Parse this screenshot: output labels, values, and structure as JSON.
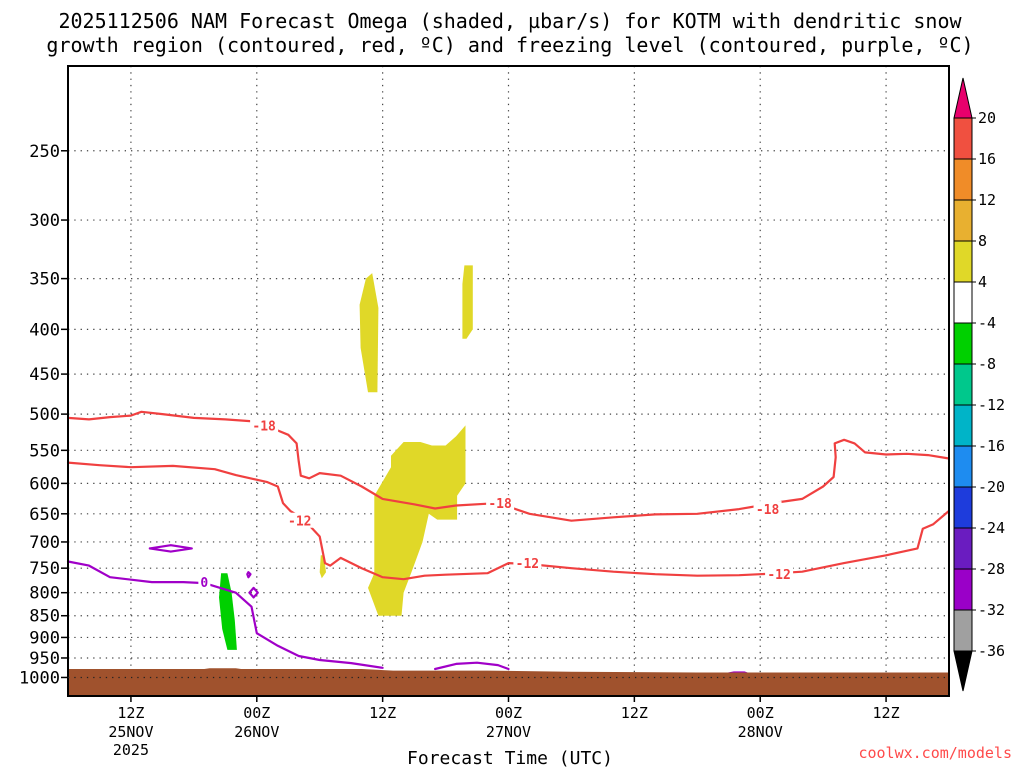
{
  "chart_data": {
    "type": "heatmap",
    "title_line1": "2025112506 NAM Forecast Omega (shaded, µbar/s) for KOTM with dendritic snow",
    "title_line2": "growth region (contoured, red, ºC) and freezing level (contoured, purple, ºC)",
    "xlabel": "Forecast Time (UTC)",
    "ylabel": "",
    "credit": "coolwx.com/models",
    "x_axis": {
      "unit": "hours since 2025-11-25 06Z",
      "range": [
        0,
        84
      ],
      "ticks": [
        {
          "h": 6,
          "label": "12Z",
          "sub1": "25NOV",
          "sub2": "2025"
        },
        {
          "h": 18,
          "label": "00Z",
          "sub1": "26NOV",
          "sub2": ""
        },
        {
          "h": 30,
          "label": "12Z",
          "sub1": "",
          "sub2": ""
        },
        {
          "h": 42,
          "label": "00Z",
          "sub1": "27NOV",
          "sub2": ""
        },
        {
          "h": 54,
          "label": "12Z",
          "sub1": "",
          "sub2": ""
        },
        {
          "h": 66,
          "label": "00Z",
          "sub1": "28NOV",
          "sub2": ""
        },
        {
          "h": 78,
          "label": "12Z",
          "sub1": "",
          "sub2": ""
        }
      ]
    },
    "y_axis": {
      "unit": "hPa",
      "scale": "log",
      "range": [
        1050,
        200
      ],
      "ticks": [
        250,
        300,
        350,
        400,
        450,
        500,
        550,
        600,
        650,
        700,
        750,
        800,
        850,
        900,
        950,
        1000
      ]
    },
    "grid": true,
    "colorbar": {
      "position": "right",
      "colors": [
        "#000000",
        "#a0a0a0",
        "#9a00c8",
        "#6a1cc0",
        "#1e3cdc",
        "#1e8cf0",
        "#00b4c8",
        "#00c88c",
        "#00d000",
        "#ffffff",
        "#e0d828",
        "#e8b030",
        "#f08c28",
        "#f05040",
        "#e8006c"
      ],
      "labels": [
        "-36",
        "-32",
        "-28",
        "-24",
        "-20",
        "-16",
        "-12",
        "-8",
        "-4",
        "4",
        "8",
        "12",
        "16",
        "20"
      ]
    },
    "ground_color": "#a0522d",
    "ground_top_hpa": [
      [
        0,
        978
      ],
      [
        13,
        978
      ],
      [
        13.5,
        976
      ],
      [
        16,
        976
      ],
      [
        16.5,
        978
      ],
      [
        28,
        978
      ],
      [
        31,
        982
      ],
      [
        40,
        982
      ],
      [
        48,
        985
      ],
      [
        60,
        987
      ],
      [
        84,
        987
      ]
    ],
    "omega_regions": [
      {
        "category": "-8 to -4",
        "color": "#00d000",
        "points": [
          [
            14.6,
            760
          ],
          [
            15.2,
            760
          ],
          [
            15.6,
            800
          ],
          [
            15.9,
            860
          ],
          [
            16.1,
            930
          ],
          [
            15.2,
            930
          ],
          [
            14.7,
            880
          ],
          [
            14.4,
            810
          ]
        ]
      },
      {
        "category": "4 to 8",
        "color": "#e0d828",
        "points": [
          [
            28.4,
            350
          ],
          [
            29.0,
            345
          ],
          [
            29.6,
            378
          ],
          [
            29.5,
            472
          ],
          [
            28.6,
            472
          ],
          [
            27.9,
            420
          ],
          [
            27.8,
            375
          ]
        ]
      },
      {
        "category": "4 to 8",
        "color": "#e0d828",
        "points": [
          [
            37.8,
            338
          ],
          [
            38.6,
            338
          ],
          [
            38.6,
            400
          ],
          [
            38.0,
            410
          ],
          [
            37.6,
            410
          ],
          [
            37.6,
            355
          ]
        ]
      },
      {
        "category": "4 to 8",
        "color": "#e0d828",
        "points": [
          [
            32.0,
            538
          ],
          [
            33.6,
            538
          ],
          [
            34.7,
            543
          ],
          [
            36.0,
            543
          ],
          [
            37.0,
            530
          ],
          [
            37.9,
            515
          ],
          [
            37.9,
            600
          ],
          [
            37.1,
            620
          ],
          [
            37.1,
            660
          ],
          [
            35.2,
            660
          ],
          [
            34.4,
            650
          ],
          [
            33.8,
            700
          ],
          [
            32.8,
            755
          ],
          [
            32.0,
            800
          ],
          [
            31.8,
            850
          ],
          [
            29.6,
            850
          ],
          [
            28.6,
            790
          ],
          [
            29.2,
            760
          ],
          [
            29.2,
            620
          ],
          [
            30.8,
            575
          ],
          [
            30.8,
            558
          ]
        ]
      },
      {
        "category": "4 to 8",
        "color": "#e0d828",
        "points": [
          [
            24.1,
            725
          ],
          [
            24.4,
            725
          ],
          [
            24.6,
            758
          ],
          [
            24.2,
            770
          ],
          [
            24.0,
            758
          ]
        ]
      }
    ],
    "contours": [
      {
        "series": "dendritic snow growth region (ºC)",
        "color": "#f04040",
        "level": -18,
        "label": "-18",
        "points": [
          [
            0,
            505
          ],
          [
            2,
            507
          ],
          [
            4,
            504
          ],
          [
            6,
            502
          ],
          [
            7,
            497
          ],
          [
            9,
            500
          ],
          [
            12,
            505
          ],
          [
            15,
            507
          ],
          [
            18,
            510
          ],
          [
            20,
            522
          ],
          [
            21,
            528
          ],
          [
            21.8,
            540
          ],
          [
            22,
            566
          ],
          [
            22.2,
            588
          ],
          [
            23,
            592
          ],
          [
            24,
            584
          ],
          [
            26,
            588
          ],
          [
            28,
            605
          ],
          [
            30,
            625
          ],
          [
            33,
            634
          ],
          [
            35,
            641
          ],
          [
            37,
            636
          ],
          [
            40,
            633
          ],
          [
            42,
            638
          ],
          [
            44,
            650
          ],
          [
            48,
            662
          ],
          [
            52,
            656
          ],
          [
            56,
            651
          ],
          [
            60,
            650
          ],
          [
            64,
            642
          ],
          [
            68,
            630
          ],
          [
            70,
            625
          ],
          [
            72,
            605
          ],
          [
            73,
            590
          ],
          [
            73.2,
            560
          ],
          [
            73.1,
            540
          ],
          [
            74,
            535
          ],
          [
            75,
            540
          ],
          [
            76,
            553
          ],
          [
            78,
            556
          ],
          [
            80,
            555
          ],
          [
            82,
            557
          ],
          [
            84,
            562
          ]
        ]
      },
      {
        "series": "dendritic snow growth region (ºC)",
        "color": "#f04040",
        "level": -12,
        "label": "-12",
        "points": [
          [
            0,
            568
          ],
          [
            3,
            572
          ],
          [
            6,
            575
          ],
          [
            10,
            573
          ],
          [
            14,
            578
          ],
          [
            16,
            587
          ],
          [
            19,
            598
          ],
          [
            20,
            605
          ],
          [
            20.5,
            632
          ],
          [
            21.2,
            645
          ],
          [
            22.5,
            660
          ],
          [
            24,
            690
          ],
          [
            24.5,
            740
          ],
          [
            25,
            745
          ],
          [
            26,
            730
          ],
          [
            28,
            750
          ],
          [
            30,
            768
          ],
          [
            32,
            772
          ],
          [
            34,
            765
          ],
          [
            36,
            763
          ],
          [
            40,
            760
          ],
          [
            42,
            740
          ],
          [
            44,
            742
          ],
          [
            48,
            750
          ],
          [
            52,
            757
          ],
          [
            56,
            762
          ],
          [
            60,
            765
          ],
          [
            64,
            764
          ],
          [
            66,
            762
          ],
          [
            70,
            757
          ],
          [
            74,
            740
          ],
          [
            78,
            725
          ],
          [
            81,
            712
          ],
          [
            81.5,
            676
          ],
          [
            82.5,
            668
          ],
          [
            84,
            645
          ]
        ]
      },
      {
        "series": "freezing level (ºC)",
        "color": "#a000c8",
        "level": 0,
        "label": "0",
        "points": [
          [
            0,
            737
          ],
          [
            2,
            745
          ],
          [
            4,
            768
          ],
          [
            8,
            778
          ],
          [
            11,
            778
          ],
          [
            13,
            780
          ],
          [
            16,
            800
          ],
          [
            17.5,
            830
          ],
          [
            18,
            890
          ],
          [
            20,
            920
          ],
          [
            22,
            945
          ],
          [
            24,
            955
          ],
          [
            27,
            963
          ],
          [
            30,
            975
          ]
        ]
      },
      {
        "series": "freezing level (ºC)",
        "color": "#a000c8",
        "level": 0,
        "label": "",
        "points": [
          [
            35,
            978
          ],
          [
            37,
            965
          ],
          [
            39,
            962
          ],
          [
            41,
            968
          ],
          [
            42,
            978
          ]
        ]
      },
      {
        "series": "freezing level (ºC)",
        "color": "#a000c8",
        "level": 0,
        "label": "",
        "points": [
          [
            7.8,
            712
          ],
          [
            9.8,
            706
          ],
          [
            11.8,
            712
          ],
          [
            9.8,
            718
          ],
          [
            7.8,
            712
          ]
        ]
      },
      {
        "series": "freezing level (ºC)",
        "color": "#a000c8",
        "level": 0,
        "label": "",
        "points": [
          [
            17.3,
            800
          ],
          [
            17.7,
            790
          ],
          [
            18.1,
            800
          ],
          [
            17.7,
            810
          ],
          [
            17.3,
            800
          ]
        ]
      },
      {
        "series": "freezing level (ºC)",
        "color": "#a000c8",
        "level": 0,
        "label": "",
        "points": [
          [
            17.1,
            762
          ],
          [
            17.2,
            758
          ],
          [
            17.4,
            762
          ],
          [
            17.2,
            768
          ],
          [
            17.1,
            762
          ]
        ]
      },
      {
        "series": "freezing level (ºC)",
        "color": "#a000c8",
        "level": 0,
        "label": "",
        "points": [
          [
            62.5,
            992
          ],
          [
            63.5,
            987
          ],
          [
            64.5,
            987
          ],
          [
            65,
            992
          ]
        ]
      }
    ],
    "contour_labels": [
      {
        "text": "-18",
        "color": "#f04040",
        "h": 18.7,
        "p": 515
      },
      {
        "text": "-12",
        "color": "#f04040",
        "h": 22.1,
        "p": 662
      },
      {
        "text": "-18",
        "color": "#f04040",
        "h": 41.2,
        "p": 632
      },
      {
        "text": "-12",
        "color": "#f04040",
        "h": 43.8,
        "p": 740
      },
      {
        "text": "-18",
        "color": "#f04040",
        "h": 66.7,
        "p": 642
      },
      {
        "text": "-12",
        "color": "#f04040",
        "h": 67.8,
        "p": 762
      },
      {
        "text": "0",
        "color": "#a000c8",
        "h": 13.0,
        "p": 778
      }
    ]
  }
}
